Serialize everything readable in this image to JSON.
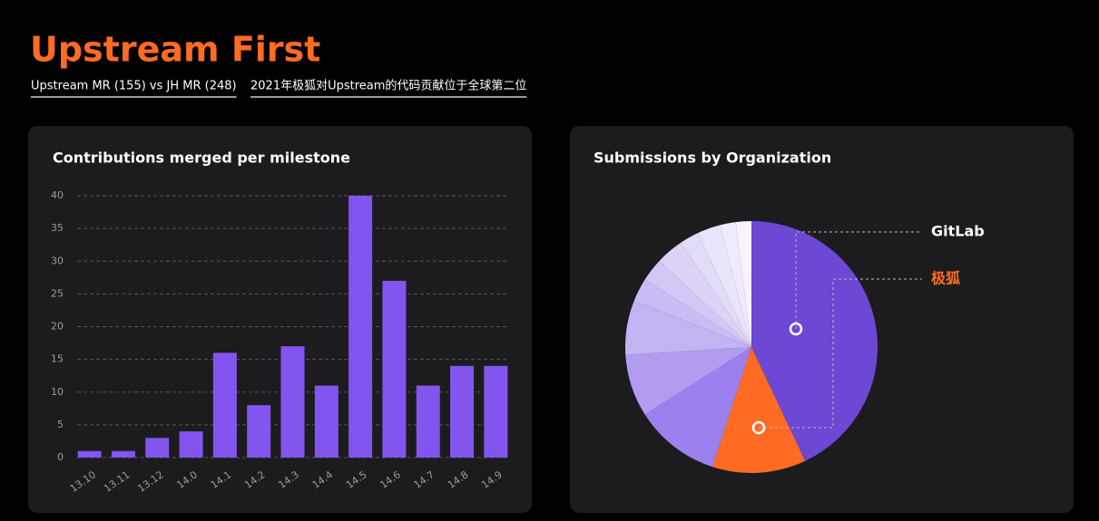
{
  "header": {
    "title": "Upstream First",
    "links": [
      "Upstream MR (155) vs JH MR (248)",
      "2021年极狐对Upstream的代码贡献位于全球第二位"
    ]
  },
  "chart_data": [
    {
      "type": "bar",
      "title": "Contributions merged per milestone",
      "categories": [
        "13.10",
        "13.11",
        "13.12",
        "14.0",
        "14.1",
        "14.2",
        "14.3",
        "14.4",
        "14.5",
        "14.6",
        "14.7",
        "14.8",
        "14.9"
      ],
      "values": [
        1,
        1,
        3,
        4,
        16,
        8,
        17,
        11,
        40,
        27,
        11,
        14,
        14
      ],
      "color": "#8155ee",
      "ylim": [
        0,
        40
      ],
      "yticks": [
        0,
        5,
        10,
        15,
        20,
        25,
        30,
        35,
        40
      ],
      "grid": true
    },
    {
      "type": "pie",
      "title": "Submissions by Organization",
      "categories": [
        "GitLab",
        "极狐",
        null,
        null,
        null,
        null,
        null,
        null,
        null,
        null,
        null,
        null
      ],
      "values": [
        43,
        12,
        11,
        8,
        7,
        3,
        3,
        3.5,
        2.5,
        3,
        2,
        2
      ],
      "colors": [
        "#6c48d4",
        "#ff6b23",
        "#9c80ee",
        "#b19cf0",
        "#c3b3f2",
        "#cabcf4",
        "#d3c8f5",
        "#dcd3f7",
        "#e3dcf8",
        "#e9e4fa",
        "#efebfb",
        "#f6f3fd"
      ],
      "label_colors": [
        "#ffffff",
        "#ff6b23"
      ]
    }
  ]
}
